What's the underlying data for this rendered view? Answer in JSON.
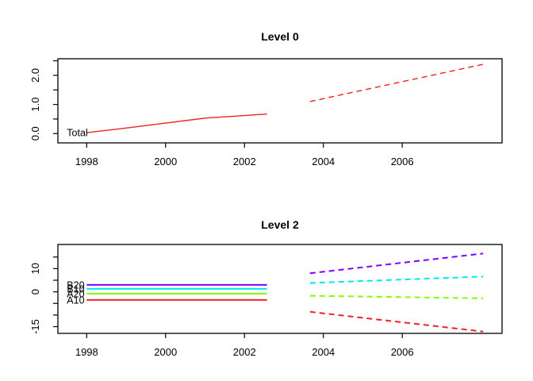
{
  "chart_data": [
    {
      "type": "line",
      "title": "Level 0",
      "xlim": [
        1997.27,
        2008.53
      ],
      "ylim": [
        -0.32,
        2.57
      ],
      "grid": false,
      "legend": "inline-labels",
      "x_ticks": {
        "values": [
          1998,
          2000,
          2002,
          2004,
          2006
        ],
        "labels": [
          "1998",
          "2000",
          "2002",
          "2004",
          "2006"
        ]
      },
      "y_ticks": {
        "values": [
          0,
          0.5,
          1,
          1.5,
          2,
          2.5
        ],
        "labels": [
          "0.0",
          "",
          "1.0",
          "",
          "2.0",
          ""
        ]
      },
      "series": [
        {
          "name": "Total",
          "label": "Total",
          "color": "#f02222",
          "style": "solid",
          "x": [
            1998,
            1999,
            2000,
            2001,
            2002.57
          ],
          "y": [
            0.03,
            0.19,
            0.36,
            0.53,
            0.67
          ]
        },
        {
          "name": "Total forecast",
          "color": "#f02222",
          "style": "dashed",
          "x": [
            2003.66,
            2008.05
          ],
          "y": [
            1.1,
            2.38
          ]
        }
      ]
    },
    {
      "type": "line",
      "title": "Level 2",
      "xlim": [
        1997.27,
        2008.53
      ],
      "ylim": [
        -17.9,
        20.4
      ],
      "grid": false,
      "legend": "inline-labels",
      "x_ticks": {
        "values": [
          1998,
          2000,
          2002,
          2004,
          2006
        ],
        "labels": [
          "1998",
          "2000",
          "2002",
          "2004",
          "2006"
        ]
      },
      "y_ticks": {
        "values": [
          -15,
          -10,
          -5,
          0,
          5,
          10,
          15
        ],
        "labels": [
          "-15",
          "",
          "",
          "0",
          "",
          "10",
          ""
        ]
      },
      "series": [
        {
          "name": "B20",
          "label": "B20",
          "color": "#8000ff",
          "style": "solid",
          "x": [
            1998,
            2002.57
          ],
          "y": [
            3.0,
            3.0
          ]
        },
        {
          "name": "B10",
          "label": "B10",
          "color": "#00e8e8",
          "style": "solid",
          "x": [
            1998,
            2002.57
          ],
          "y": [
            1.3,
            1.3
          ]
        },
        {
          "name": "A20",
          "label": "A20",
          "color": "#80ff00",
          "style": "solid",
          "x": [
            1998,
            2002.57
          ],
          "y": [
            -0.8,
            -0.8
          ]
        },
        {
          "name": "A10",
          "label": "A10",
          "color": "#f02222",
          "style": "solid",
          "x": [
            1998,
            2002.57
          ],
          "y": [
            -3.5,
            -3.5
          ]
        },
        {
          "name": "B20 forecast",
          "color": "#8000ff",
          "style": "dashed",
          "x": [
            2003.66,
            2008.05
          ],
          "y": [
            8.0,
            16.5
          ]
        },
        {
          "name": "B10 forecast",
          "color": "#00e8e8",
          "style": "dashed",
          "x": [
            2003.66,
            2008.05
          ],
          "y": [
            3.8,
            6.6
          ]
        },
        {
          "name": "A20 forecast",
          "color": "#80ff00",
          "style": "dashed",
          "x": [
            2003.66,
            2008.05
          ],
          "y": [
            -1.7,
            -2.8
          ]
        },
        {
          "name": "A10 forecast",
          "color": "#f02222",
          "style": "dashed",
          "x": [
            2003.66,
            2008.05
          ],
          "y": [
            -8.6,
            -17.1
          ]
        }
      ]
    }
  ]
}
